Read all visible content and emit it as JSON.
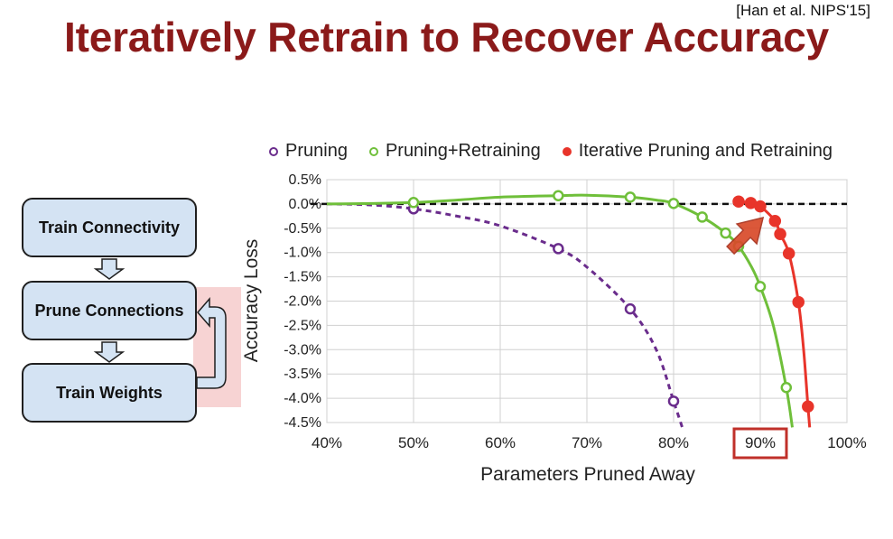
{
  "citation": "[Han et al. NIPS'15]",
  "title": "Iteratively Retrain to Recover Accuracy",
  "flowchart": {
    "boxes": [
      "Train Connectivity",
      "Prune Connections",
      "Train Weights"
    ]
  },
  "chart_data": {
    "type": "scatter",
    "xlabel": "Parameters Pruned Away",
    "ylabel": "Accuracy Loss",
    "x_ticks": [
      "40%",
      "50%",
      "60%",
      "70%",
      "80%",
      "90%",
      "100%"
    ],
    "y_ticks": [
      "0.5%",
      "0.0%",
      "-0.5%",
      "-1.0%",
      "-1.5%",
      "-2.0%",
      "-2.5%",
      "-3.0%",
      "-3.5%",
      "-4.0%",
      "-4.5%"
    ],
    "xlim": [
      40,
      100
    ],
    "ylim": [
      -4.5,
      0.5
    ],
    "grid": true,
    "legend_position": "top",
    "highlighted_x_tick": "90%",
    "baseline_y": 0.0,
    "series": [
      {
        "name": "Pruning",
        "color": "#6a2c8c",
        "marker": "hollow-circle",
        "line": "dashed",
        "points": [
          [
            50,
            -0.1
          ],
          [
            66.7,
            -0.92
          ],
          [
            75,
            -2.16
          ],
          [
            80,
            -4.06
          ]
        ],
        "curve": [
          [
            40,
            0.0
          ],
          [
            45,
            -0.02
          ],
          [
            50,
            -0.1
          ],
          [
            55,
            -0.25
          ],
          [
            60,
            -0.45
          ],
          [
            66.7,
            -0.92
          ],
          [
            70,
            -1.3
          ],
          [
            75,
            -2.16
          ],
          [
            78,
            -3.0
          ],
          [
            80,
            -4.06
          ],
          [
            81,
            -4.6
          ]
        ]
      },
      {
        "name": "Pruning+Retraining",
        "color": "#6fbf3a",
        "marker": "hollow-circle",
        "line": "solid",
        "points": [
          [
            50,
            0.03
          ],
          [
            66.7,
            0.17
          ],
          [
            75,
            0.14
          ],
          [
            80,
            0.01
          ],
          [
            83.3,
            -0.27
          ],
          [
            86,
            -0.6
          ],
          [
            87.5,
            -0.87
          ],
          [
            90,
            -1.7
          ],
          [
            93,
            -3.78
          ]
        ],
        "curve": [
          [
            40,
            0.0
          ],
          [
            45,
            0.01
          ],
          [
            50,
            0.03
          ],
          [
            55,
            0.08
          ],
          [
            60,
            0.14
          ],
          [
            66.7,
            0.17
          ],
          [
            70,
            0.18
          ],
          [
            75,
            0.14
          ],
          [
            78,
            0.08
          ],
          [
            80,
            0.01
          ],
          [
            83.3,
            -0.27
          ],
          [
            86,
            -0.6
          ],
          [
            87.5,
            -0.87
          ],
          [
            89,
            -1.3
          ],
          [
            90,
            -1.7
          ],
          [
            91.5,
            -2.5
          ],
          [
            93,
            -3.78
          ],
          [
            93.7,
            -4.6
          ]
        ]
      },
      {
        "name": "Iterative Pruning and Retraining",
        "color": "#e8342a",
        "marker": "filled-circle",
        "line": "solid",
        "points": [
          [
            87.5,
            0.05
          ],
          [
            88.9,
            0.02
          ],
          [
            90,
            -0.05
          ],
          [
            91.7,
            -0.35
          ],
          [
            92.3,
            -0.62
          ],
          [
            93.3,
            -1.02
          ],
          [
            94.4,
            -2.02
          ],
          [
            95.5,
            -4.17
          ]
        ],
        "curve": [
          [
            87.5,
            0.05
          ],
          [
            88.9,
            0.02
          ],
          [
            90,
            -0.05
          ],
          [
            91.7,
            -0.35
          ],
          [
            92.3,
            -0.62
          ],
          [
            93.3,
            -1.02
          ],
          [
            94.4,
            -2.02
          ],
          [
            95,
            -3.0
          ],
          [
            95.5,
            -4.17
          ],
          [
            95.7,
            -4.6
          ]
        ]
      }
    ]
  }
}
